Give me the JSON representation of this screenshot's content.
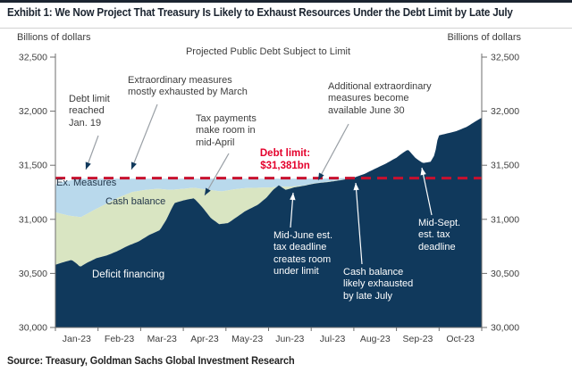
{
  "header": {
    "title": "Exhibit 1: We Now Project That Treasury Is Likely to Exhaust Resources Under the Debt Limit by Late July"
  },
  "chart": {
    "title": "Projected Public Debt Subject to Limit",
    "unit_left": "Billions of dollars",
    "unit_right": "Billions of dollars"
  },
  "labels": {
    "ex_measures": "Ex. Measures",
    "cash_balance": "Cash balance",
    "deficit_financing": "Deficit financing",
    "debt_limit": "Debt limit:\n$31,381bn"
  },
  "annotations": {
    "debt_limit_reached": "Debt limit\nreached\nJan. 19",
    "extraordinary_measures": "Extraordinary measures\nmostly exhausted by March",
    "tax_payments": "Tax payments\nmake room in\nmid-April",
    "additional_measures": "Additional extraordinary\nmeasures become\navailable June 30",
    "mid_june": "Mid-June est.\ntax deadline\ncreates room\nunder limit",
    "cash_exhausted": "Cash balance\nlikely exhausted\nby late July",
    "mid_sept": "Mid-Sept.\nest. tax\ndeadline"
  },
  "footer": {
    "source": "Source: Treasury, Goldman Sachs Global Investment Research"
  },
  "colors": {
    "navy": "#10395c",
    "green": "#d9e5c2",
    "blue": "#b9d9ec",
    "limit_red": "#c8102e",
    "text_red": "#e4002b",
    "axis": "#6e6e6e",
    "tick_text": "#404040",
    "gray_arrow": "#9aa0a6",
    "white": "#ffffff"
  },
  "chart_data": {
    "type": "area",
    "title": "Projected Public Debt Subject to Limit",
    "ylabel": "Billions of dollars",
    "ylim": [
      30000,
      32500
    ],
    "y_tick_values": [
      32500,
      32000,
      31500,
      31000,
      30500,
      30000
    ],
    "y_tick_labels": [
      "32,500",
      "32,000",
      "31,500",
      "31,000",
      "30,500",
      "30,000"
    ],
    "x_tick_labels": [
      "Jan-23",
      "Feb-23",
      "Mar-23",
      "Apr-23",
      "May-23",
      "Jun-23",
      "Jul-23",
      "Aug-23",
      "Sep-23",
      "Oct-23"
    ],
    "x_unit_months": 10,
    "limit_value": 31381,
    "limit_label": "Debt limit: $31,381bn",
    "stack_note": "series values are absolute tops of each stacked band, in $bn; x is months since Jan 1 2023",
    "series": [
      {
        "name": "Deficit financing (debt subject to limit)",
        "role": "debt_top",
        "points": [
          [
            0,
            30580
          ],
          [
            0.2,
            30605
          ],
          [
            0.38,
            30625
          ],
          [
            0.5,
            30590
          ],
          [
            0.58,
            30560
          ],
          [
            0.75,
            30600
          ],
          [
            0.96,
            30640
          ],
          [
            1.2,
            30665
          ],
          [
            1.45,
            30705
          ],
          [
            1.7,
            30755
          ],
          [
            1.95,
            30795
          ],
          [
            2.2,
            30855
          ],
          [
            2.45,
            30900
          ],
          [
            2.6,
            30995
          ],
          [
            2.79,
            31150
          ],
          [
            3.0,
            31175
          ],
          [
            3.25,
            31195
          ],
          [
            3.45,
            31110
          ],
          [
            3.65,
            31010
          ],
          [
            3.84,
            30955
          ],
          [
            4.05,
            30965
          ],
          [
            4.25,
            31020
          ],
          [
            4.45,
            31075
          ],
          [
            4.75,
            31135
          ],
          [
            4.95,
            31200
          ],
          [
            5.1,
            31270
          ],
          [
            5.24,
            31315
          ],
          [
            5.4,
            31272
          ],
          [
            5.6,
            31295
          ],
          [
            5.85,
            31312
          ],
          [
            6.1,
            31332
          ],
          [
            6.4,
            31345
          ],
          [
            6.7,
            31362
          ],
          [
            7.0,
            31385
          ],
          [
            7.25,
            31420
          ],
          [
            7.5,
            31468
          ],
          [
            7.75,
            31515
          ],
          [
            8.0,
            31570
          ],
          [
            8.15,
            31615
          ],
          [
            8.27,
            31645
          ],
          [
            8.45,
            31565
          ],
          [
            8.62,
            31520
          ],
          [
            8.8,
            31532
          ],
          [
            8.9,
            31600
          ],
          [
            8.98,
            31775
          ],
          [
            9.15,
            31790
          ],
          [
            9.4,
            31815
          ],
          [
            9.65,
            31855
          ],
          [
            9.85,
            31905
          ],
          [
            10,
            31940
          ]
        ]
      },
      {
        "name": "Cash balance",
        "role": "cash_top",
        "points": [
          [
            0,
            31065
          ],
          [
            0.3,
            31035
          ],
          [
            0.6,
            31020
          ],
          [
            0.9,
            31085
          ],
          [
            1.2,
            31145
          ],
          [
            1.5,
            31205
          ],
          [
            1.8,
            31252
          ],
          [
            2.1,
            31272
          ],
          [
            2.4,
            31282
          ],
          [
            2.7,
            31272
          ],
          [
            3.0,
            31282
          ],
          [
            3.25,
            31292
          ],
          [
            3.6,
            31272
          ],
          [
            3.9,
            31258
          ],
          [
            4.2,
            31278
          ],
          [
            4.5,
            31290
          ],
          [
            4.8,
            31292
          ],
          [
            5.1,
            31296
          ],
          [
            5.24,
            31302
          ],
          [
            5.5,
            31302
          ],
          [
            5.8,
            31312
          ],
          [
            6.1,
            31335
          ],
          [
            6.4,
            31348
          ],
          [
            6.7,
            31365
          ],
          [
            7.0,
            31385
          ]
        ]
      },
      {
        "name": "Ex. Measures (extraordinary measures)",
        "role": "resources_top",
        "points": [
          [
            0,
            31322
          ],
          [
            0.2,
            31348
          ],
          [
            0.45,
            31368
          ],
          [
            0.6,
            31376
          ],
          [
            2.0,
            31376
          ],
          [
            4.0,
            31376
          ],
          [
            6.0,
            31376
          ],
          [
            6.5,
            31378
          ],
          [
            7.0,
            31385
          ]
        ]
      }
    ]
  }
}
